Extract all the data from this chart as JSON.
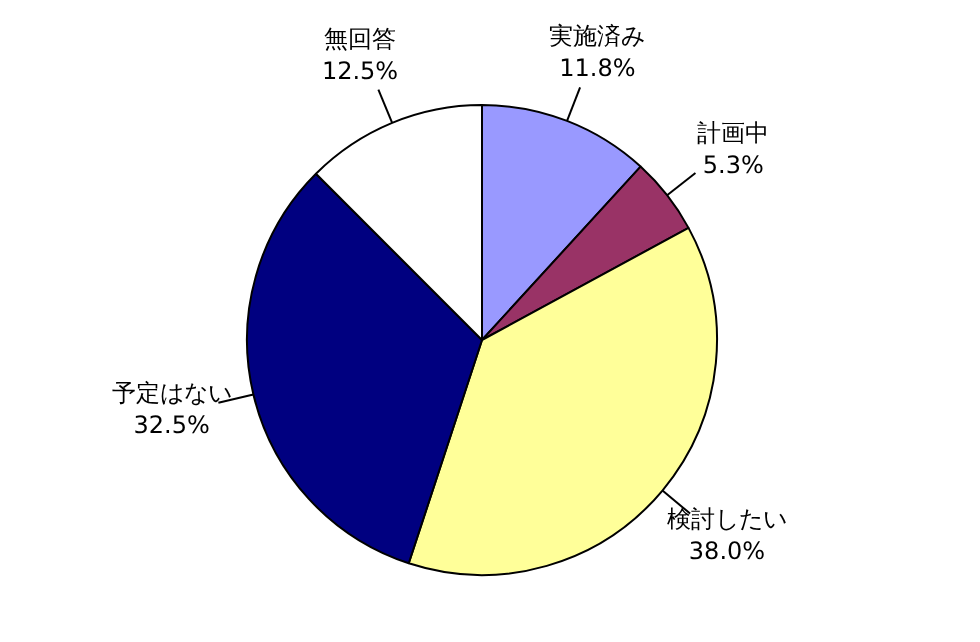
{
  "chart_data": {
    "type": "pie",
    "categories": [
      "実施済み",
      "計画中",
      "検討したい",
      "予定はない",
      "無回答"
    ],
    "values": [
      11.8,
      5.3,
      38.0,
      32.5,
      12.5
    ],
    "value_labels": [
      "11.8%",
      "5.3%",
      "38.0%",
      "32.5%",
      "12.5%"
    ],
    "colors": [
      "#9999ff",
      "#993366",
      "#ffff99",
      "#000080",
      "#ffffff"
    ],
    "legend": false
  }
}
